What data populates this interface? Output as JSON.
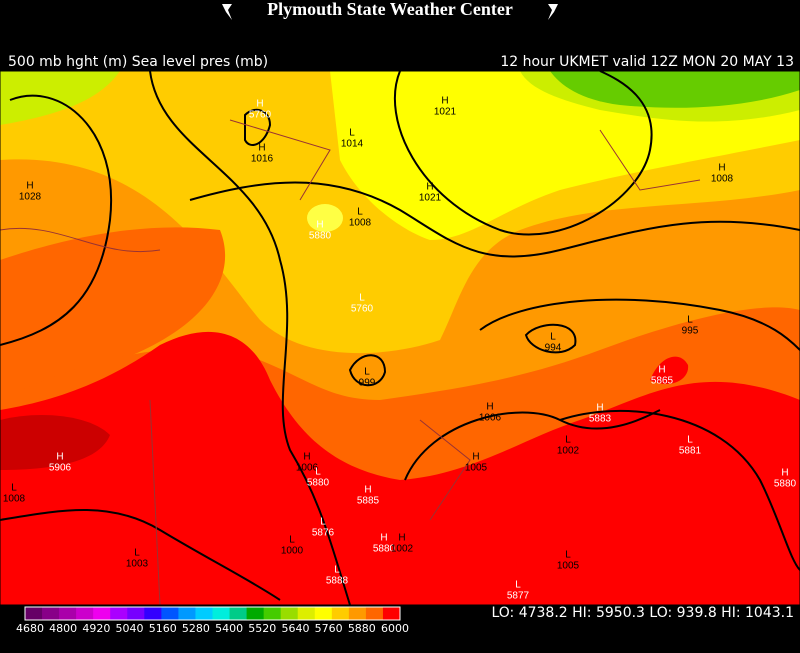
{
  "header": {
    "title": "Plymouth State Weather Center",
    "left": "500 mb hght (m) Sea level pres (mb)",
    "right": "12 hour UKMET valid 12Z MON 20 MAY 13"
  },
  "map": {
    "labels": [
      {
        "mark": "H",
        "text": "1028"
      },
      {
        "mark": "H",
        "text": "5760"
      },
      {
        "mark": "H",
        "text": "1016"
      },
      {
        "mark": "L",
        "text": "1014"
      },
      {
        "mark": "H",
        "text": "1021"
      },
      {
        "mark": "H",
        "text": "1021"
      },
      {
        "mark": "H",
        "text": "1008"
      },
      {
        "mark": "L",
        "text": "1008"
      },
      {
        "mark": "H",
        "text": "5880"
      },
      {
        "mark": "L",
        "text": "5760"
      },
      {
        "mark": "L",
        "text": "994"
      },
      {
        "mark": "L",
        "text": "995"
      },
      {
        "mark": "L",
        "text": "999"
      },
      {
        "mark": "H",
        "text": "5865"
      },
      {
        "mark": "H",
        "text": "1006"
      },
      {
        "mark": "H",
        "text": "5883"
      },
      {
        "mark": "L",
        "text": "1002"
      },
      {
        "mark": "L",
        "text": "5881"
      },
      {
        "mark": "H",
        "text": "5880"
      },
      {
        "mark": "H",
        "text": "5906"
      },
      {
        "mark": "L",
        "text": "1008"
      },
      {
        "mark": "H",
        "text": "1006"
      },
      {
        "mark": "L",
        "text": "5880"
      },
      {
        "mark": "H",
        "text": "1005"
      },
      {
        "mark": "H",
        "text": "5885"
      },
      {
        "mark": "L",
        "text": "5876"
      },
      {
        "mark": "L",
        "text": "1000"
      },
      {
        "mark": "H",
        "text": "5880"
      },
      {
        "mark": "H",
        "text": "1002"
      },
      {
        "mark": "L",
        "text": "1003"
      },
      {
        "mark": "L",
        "text": "5888"
      },
      {
        "mark": "L",
        "text": "1005"
      },
      {
        "mark": "L",
        "text": "5877"
      }
    ]
  },
  "colorbar": {
    "labels": [
      "4680",
      "4800",
      "4920",
      "5040",
      "5160",
      "5280",
      "5400",
      "5520",
      "5640",
      "5760",
      "5880",
      "6000"
    ],
    "colors": [
      "#660066",
      "#880088",
      "#aa00aa",
      "#cc00cc",
      "#ee00ee",
      "#aa00ff",
      "#7700ff",
      "#3300ff",
      "#0055ff",
      "#0099ff",
      "#00ccff",
      "#00eedd",
      "#00cc88",
      "#00aa00",
      "#44cc00",
      "#99dd00",
      "#ddee00",
      "#ffff00",
      "#ffcc00",
      "#ff9900",
      "#ff6600",
      "#ff0000"
    ]
  },
  "stats": "LO: 4738.2  HI: 5950.3  LO: 939.8  HI: 1043.1"
}
